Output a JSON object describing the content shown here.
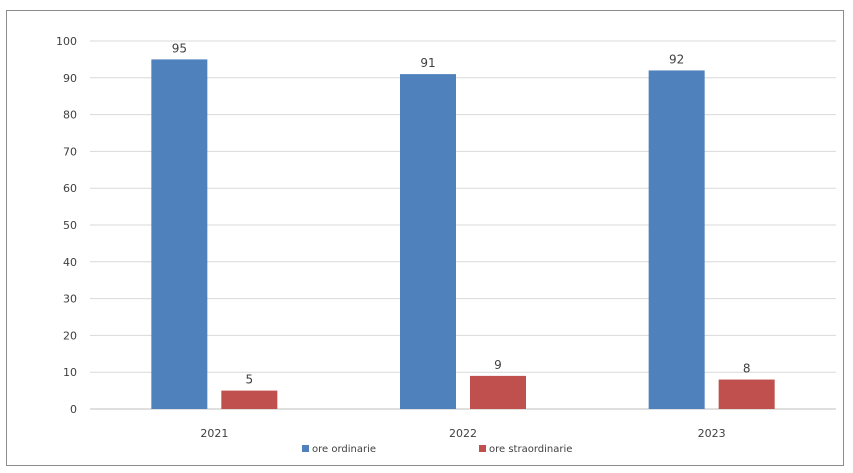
{
  "chart_data": {
    "type": "bar",
    "title": "",
    "xlabel": "",
    "ylabel": "",
    "categories": [
      "2021",
      "2022",
      "2023"
    ],
    "series": [
      {
        "name": "ore ordinarie",
        "values": [
          95,
          91,
          92
        ],
        "color": "#4f81bd"
      },
      {
        "name": "ore straordinarie",
        "values": [
          5,
          9,
          8
        ],
        "color": "#c0504d"
      }
    ],
    "ylim": [
      0,
      100
    ],
    "yticks": [
      0,
      10,
      20,
      30,
      40,
      50,
      60,
      70,
      80,
      90,
      100
    ],
    "grid": true,
    "legend_position": "bottom",
    "data_labels": true
  }
}
